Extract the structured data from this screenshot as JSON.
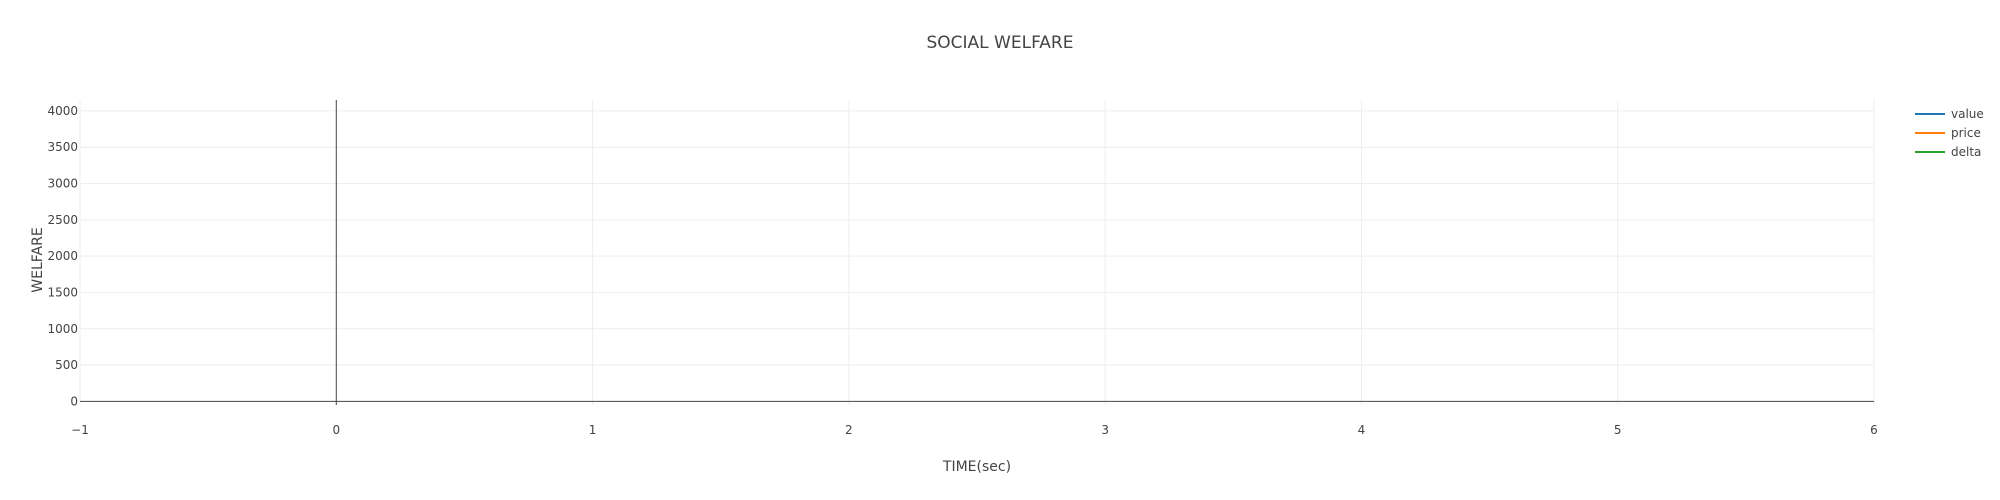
{
  "chart_data": {
    "type": "line",
    "title": "SOCIAL WELFARE",
    "xlabel": "TIME(sec)",
    "ylabel": "WELFARE",
    "xlim": [
      -1,
      6
    ],
    "ylim": [
      -50,
      4150
    ],
    "x_ticks": [
      -1,
      0,
      1,
      2,
      3,
      4,
      5,
      6
    ],
    "x_tick_labels": [
      "−1",
      "0",
      "1",
      "2",
      "3",
      "4",
      "5",
      "6"
    ],
    "y_ticks": [
      0,
      500,
      1000,
      1500,
      2000,
      2500,
      3000,
      3500,
      4000
    ],
    "y_tick_labels": [
      "0",
      "500",
      "1000",
      "1500",
      "2000",
      "2500",
      "3000",
      "3500",
      "4000"
    ],
    "grid": true,
    "legend_position": "top-right",
    "series": [
      {
        "name": "value",
        "color": "#1f77b4",
        "points": []
      },
      {
        "name": "price",
        "color": "#ff7f0e",
        "points": []
      },
      {
        "name": "delta",
        "color": "#2ca02c",
        "points": []
      }
    ]
  },
  "colors": {
    "grid": "#eeeeee",
    "zero_line": "#444444",
    "text": "#444444"
  }
}
